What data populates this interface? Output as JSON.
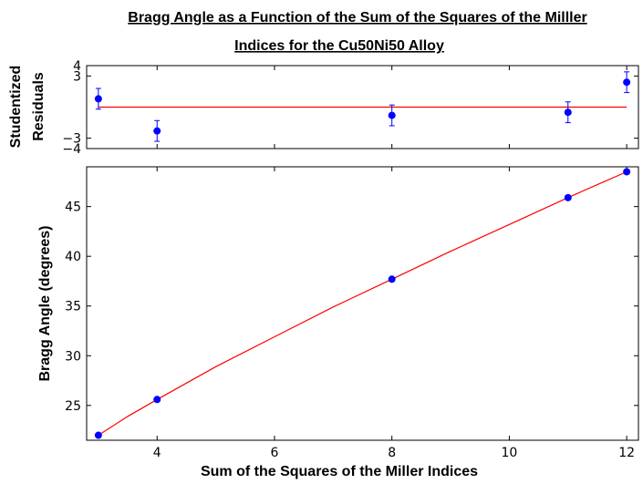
{
  "colors": {
    "data": "#0000ff",
    "fit": "#ff0000",
    "axes": "#000000",
    "background": "#ffffff"
  },
  "chart_data": [
    {
      "type": "scatter",
      "role": "residuals",
      "title_lines": [
        "Bragg Angle as a Function of the Sum of the Squares of the Milller",
        "Indices for the Cu50Ni50 Alloy"
      ],
      "ylabel_lines": [
        "Studentized",
        "Residuals"
      ],
      "xlim": [
        2.8,
        12.2
      ],
      "ylim": [
        -4,
        4
      ],
      "yticks": [
        -4,
        -3,
        3,
        4
      ],
      "ytick_labels": [
        "−4",
        "−3",
        "3",
        "4"
      ],
      "x": [
        3,
        4,
        8,
        11,
        12
      ],
      "y": [
        0.8,
        -2.3,
        -0.8,
        -0.5,
        2.4
      ],
      "yerr": [
        1,
        1,
        1,
        1,
        1
      ],
      "zero_line": 0,
      "grid": false
    },
    {
      "type": "scatter",
      "role": "main",
      "xlabel": "Sum of the Squares of the Miller Indices",
      "ylabel": "Bragg  Angle (degrees)",
      "xlim": [
        2.8,
        12.2
      ],
      "ylim": [
        21.5,
        49
      ],
      "xticks": [
        4,
        6,
        8,
        10,
        12
      ],
      "xtick_labels": [
        "4",
        "6",
        "8",
        "10",
        "12"
      ],
      "yticks": [
        25,
        30,
        35,
        40,
        45
      ],
      "ytick_labels": [
        "25",
        "30",
        "35",
        "40",
        "45"
      ],
      "series": [
        {
          "x": [
            3,
            4,
            8,
            11,
            12
          ],
          "y": [
            22.0,
            25.6,
            37.7,
            45.9,
            48.5
          ]
        }
      ],
      "fit_curve": {
        "x": [
          3,
          3.5,
          4,
          5,
          6,
          7,
          8,
          9,
          10,
          11,
          11.5,
          12
        ],
        "y": [
          22.0,
          23.9,
          25.6,
          28.9,
          31.9,
          34.9,
          37.7,
          40.5,
          43.2,
          45.9,
          47.2,
          48.5
        ]
      },
      "grid": false
    }
  ]
}
